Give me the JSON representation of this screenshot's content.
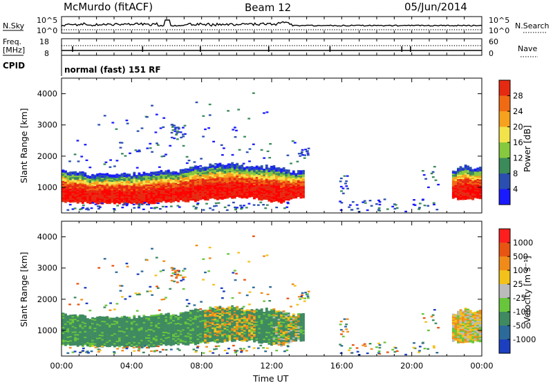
{
  "header": {
    "station": "McMurdo (fitACF)",
    "beam": "Beam 12",
    "date": "05/Jun/2014"
  },
  "summary_panels": {
    "nsky_label": "N.Sky",
    "nsky_scale_top": "10^5",
    "nsky_scale_bottom": "10^0",
    "nsearch_label": "N.Search",
    "nsearch_scale_top": "10^5",
    "nsearch_scale_bottom": "10^0",
    "freq_label": "Freq.",
    "freq_unit": "[MHz]",
    "freq_ticks": [
      "18",
      "8"
    ],
    "nave_label": "Nave",
    "nave_ticks": [
      "60",
      "0"
    ],
    "cpid_label": "CPID",
    "cpid_value": "normal (fast) 151 RF"
  },
  "colors": {
    "power": [
      "#1a1aff",
      "#2a4fb0",
      "#3b8a5a",
      "#86c93e",
      "#f2e34a",
      "#f6a21e",
      "#f06a14",
      "#e62a12",
      "#ff0000"
    ],
    "velocity": [
      "#1c3fbf",
      "#2c6a9a",
      "#3f8a60",
      "#67c63b",
      "#bbbbbb",
      "#f3c21a",
      "#f08b1a",
      "#e85512",
      "#ff1e1e"
    ]
  },
  "chart_data": [
    {
      "type": "heatmap",
      "name_text": "Power",
      "ylabel": "Slant Range [km]",
      "xlabel": "",
      "ylim": [
        180,
        4500
      ],
      "yticks": [
        "4000",
        "3000",
        "2000",
        "1000"
      ],
      "xticks": [
        "00:00",
        "04:00",
        "08:00",
        "12:00",
        "16:00",
        "20:00",
        "00:00"
      ],
      "colorbar": {
        "label": "Power [dB]",
        "ticks": [
          "28",
          "24",
          "20",
          "16",
          "12",
          "8",
          "4"
        ],
        "range": [
          0,
          32
        ]
      },
      "main_band": [
        {
          "t": 0.0,
          "lo": 550,
          "hi": 1550
        },
        {
          "t": 0.5,
          "lo": 520,
          "hi": 1480
        },
        {
          "t": 1.5,
          "lo": 500,
          "hi": 1420
        },
        {
          "t": 2.5,
          "lo": 480,
          "hi": 1400
        },
        {
          "t": 3.5,
          "lo": 470,
          "hi": 1380
        },
        {
          "t": 4.5,
          "lo": 480,
          "hi": 1450
        },
        {
          "t": 5.5,
          "lo": 520,
          "hi": 1520
        },
        {
          "t": 6.5,
          "lo": 550,
          "hi": 1500
        },
        {
          "t": 7.5,
          "lo": 560,
          "hi": 1650
        },
        {
          "t": 8.5,
          "lo": 620,
          "hi": 1700
        },
        {
          "t": 9.5,
          "lo": 650,
          "hi": 1750
        },
        {
          "t": 10.5,
          "lo": 680,
          "hi": 1700
        },
        {
          "t": 11.5,
          "lo": 600,
          "hi": 1650
        },
        {
          "t": 12.5,
          "lo": 500,
          "hi": 1600
        },
        {
          "t": 13.0,
          "lo": 600,
          "hi": 1500
        },
        {
          "t": 13.8,
          "lo": 700,
          "hi": 1450
        }
      ],
      "late_band": [
        {
          "t": 22.3,
          "lo": 650,
          "hi": 1550
        },
        {
          "t": 23.0,
          "lo": 600,
          "hi": 1650
        },
        {
          "t": 24.0,
          "lo": 650,
          "hi": 1600
        }
      ]
    },
    {
      "type": "heatmap",
      "name_text": "Velocity",
      "ylabel": "Slant Range [km]",
      "xlabel": "Time UT",
      "ylim": [
        180,
        4500
      ],
      "yticks": [
        "4000",
        "3000",
        "2000",
        "1000"
      ],
      "xticks": [
        "00:00",
        "04:00",
        "08:00",
        "12:00",
        "16:00",
        "20:00",
        "00:00"
      ],
      "colorbar": {
        "label": "Velocity [m s⁻¹]",
        "ticks": [
          "1000",
          "500",
          "100",
          "25",
          "-25",
          "-100",
          "-500",
          "-1000"
        ]
      }
    }
  ]
}
